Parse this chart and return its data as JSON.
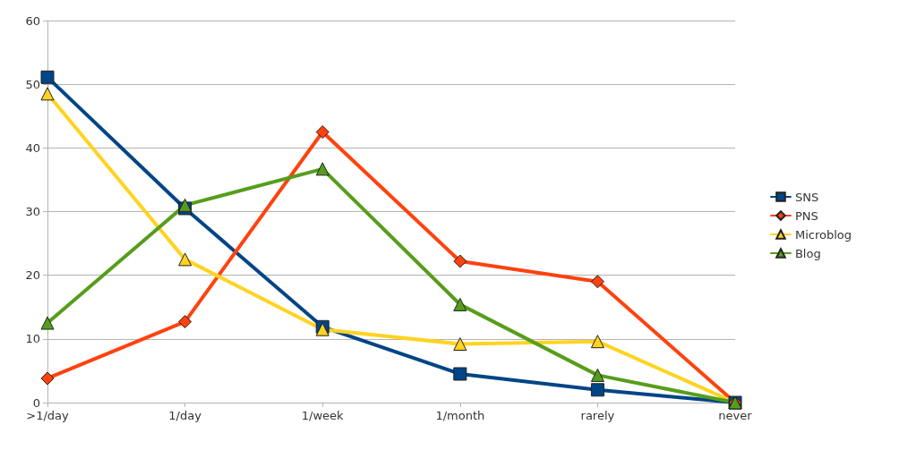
{
  "chart_data": {
    "type": "line",
    "categories": [
      ">1/day",
      "1/day",
      "1/week",
      "1/month",
      "rarely",
      "never"
    ],
    "series": [
      {
        "name": "SNS",
        "color": "#004586",
        "marker": "square",
        "values": [
          51.1,
          30.5,
          11.9,
          4.5,
          2.0,
          0
        ]
      },
      {
        "name": "PNS",
        "color": "#ff420e",
        "marker": "diamond",
        "values": [
          3.8,
          12.7,
          42.5,
          22.2,
          19.0,
          0
        ]
      },
      {
        "name": "Microblog",
        "color": "#ffd320",
        "marker": "triangle",
        "values": [
          48.5,
          22.5,
          11.5,
          9.2,
          9.6,
          0
        ]
      },
      {
        "name": "Blog",
        "color": "#579d1c",
        "marker": "triangle",
        "values": [
          12.5,
          31.0,
          36.7,
          15.4,
          4.3,
          0
        ]
      }
    ],
    "ylim": [
      0,
      60
    ],
    "yticks": [
      0,
      10,
      20,
      30,
      40,
      50,
      60
    ],
    "grid": "y",
    "legend": "right",
    "line_style": "solid"
  }
}
